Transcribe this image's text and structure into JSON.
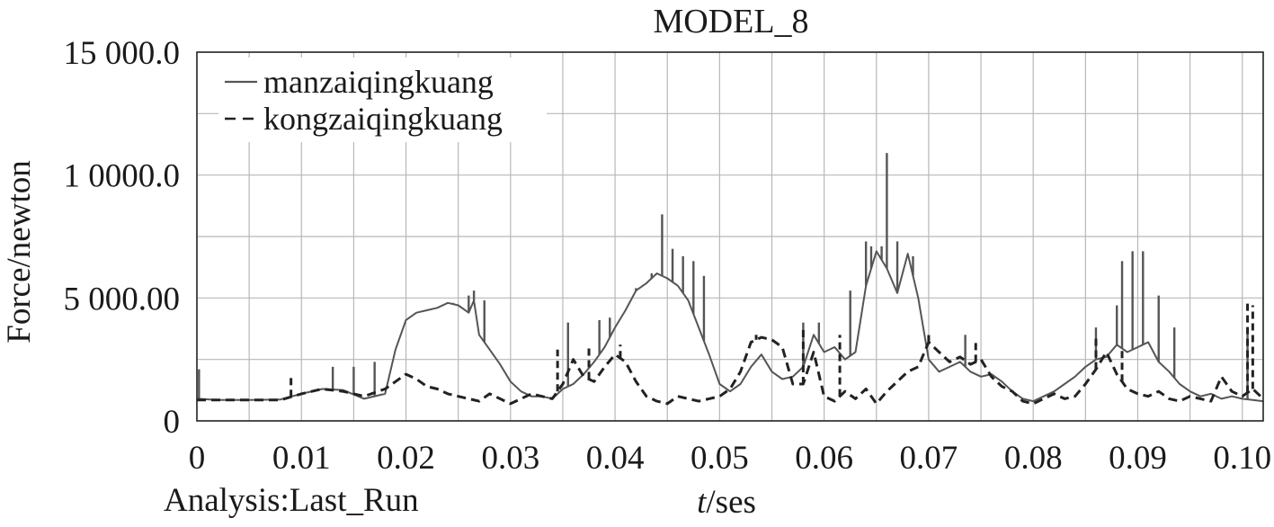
{
  "chart_data": {
    "type": "line",
    "title": "MODEL_8",
    "xlabel_italic": "t",
    "xlabel_rest": "/ses",
    "ylabel": "Force/newton",
    "footer": "Analysis:Last_Run",
    "xlim": [
      0,
      0.102
    ],
    "ylim": [
      0,
      15000
    ],
    "x_ticks": [
      0,
      0.01,
      0.02,
      0.03,
      0.04,
      0.05,
      0.06,
      0.07,
      0.08,
      0.09,
      0.1
    ],
    "x_tick_labels": [
      "0",
      "0.01",
      "0.02",
      "0.03",
      "0.04",
      "0.05",
      "0.06",
      "0.07",
      "0.08",
      "0.09",
      "0.10"
    ],
    "y_ticks": [
      0,
      5000,
      10000,
      15000
    ],
    "y_tick_labels": [
      "0",
      "5 000.00",
      "1 0000.0",
      "15 000.0"
    ],
    "grid": true,
    "legend_position": "top-left",
    "series": [
      {
        "name": "manzaiqingkuang",
        "style": "solid",
        "color": "#555555",
        "x": [
          0,
          0.002,
          0.005,
          0.008,
          0.01,
          0.012,
          0.014,
          0.016,
          0.018,
          0.019,
          0.02,
          0.021,
          0.022,
          0.023,
          0.024,
          0.025,
          0.026,
          0.0265,
          0.027,
          0.028,
          0.029,
          0.03,
          0.031,
          0.032,
          0.033,
          0.034,
          0.035,
          0.036,
          0.037,
          0.038,
          0.039,
          0.04,
          0.041,
          0.042,
          0.043,
          0.044,
          0.045,
          0.046,
          0.047,
          0.048,
          0.049,
          0.05,
          0.051,
          0.052,
          0.053,
          0.054,
          0.055,
          0.056,
          0.057,
          0.058,
          0.059,
          0.06,
          0.061,
          0.062,
          0.063,
          0.064,
          0.065,
          0.066,
          0.067,
          0.068,
          0.069,
          0.07,
          0.071,
          0.072,
          0.073,
          0.074,
          0.075,
          0.076,
          0.077,
          0.078,
          0.079,
          0.08,
          0.081,
          0.082,
          0.083,
          0.084,
          0.085,
          0.086,
          0.087,
          0.088,
          0.089,
          0.09,
          0.091,
          0.092,
          0.093,
          0.094,
          0.095,
          0.096,
          0.097,
          0.098,
          0.099,
          0.1,
          0.101,
          0.102
        ],
        "y": [
          900,
          850,
          850,
          870,
          1100,
          1300,
          1250,
          900,
          1100,
          2900,
          4100,
          4400,
          4500,
          4600,
          4800,
          4700,
          4400,
          4900,
          3500,
          2900,
          2300,
          1600,
          1200,
          1000,
          1000,
          900,
          1300,
          1500,
          1900,
          2400,
          3000,
          3800,
          4500,
          5300,
          5600,
          6000,
          5800,
          5500,
          4900,
          3800,
          2700,
          1500,
          1200,
          1500,
          2200,
          2700,
          2000,
          1700,
          1800,
          2200,
          3500,
          2800,
          3000,
          2500,
          2800,
          5500,
          6900,
          6200,
          5200,
          6800,
          5000,
          2500,
          2000,
          2200,
          2400,
          2000,
          1800,
          1900,
          1600,
          1200,
          900,
          800,
          1000,
          1200,
          1500,
          1800,
          2200,
          2500,
          2600,
          3100,
          2800,
          3000,
          3200,
          2400,
          2000,
          1500,
          1200,
          1000,
          1100,
          900,
          1000,
          900,
          850,
          800
        ],
        "spikes": [
          [
            0.0002,
            2100
          ],
          [
            0.013,
            2200
          ],
          [
            0.015,
            2200
          ],
          [
            0.017,
            2400
          ],
          [
            0.0245,
            4800
          ],
          [
            0.026,
            5100
          ],
          [
            0.0265,
            5300
          ],
          [
            0.0275,
            4900
          ],
          [
            0.0355,
            4000
          ],
          [
            0.0385,
            4100
          ],
          [
            0.0395,
            4200
          ],
          [
            0.042,
            5400
          ],
          [
            0.0435,
            6000
          ],
          [
            0.0445,
            8400
          ],
          [
            0.0455,
            7000
          ],
          [
            0.0465,
            6700
          ],
          [
            0.0475,
            6500
          ],
          [
            0.0485,
            5900
          ],
          [
            0.058,
            4000
          ],
          [
            0.0595,
            4000
          ],
          [
            0.0625,
            5300
          ],
          [
            0.064,
            7300
          ],
          [
            0.0645,
            7100
          ],
          [
            0.0655,
            7100
          ],
          [
            0.066,
            10900
          ],
          [
            0.067,
            7300
          ],
          [
            0.0685,
            6700
          ],
          [
            0.0735,
            3500
          ],
          [
            0.086,
            3800
          ],
          [
            0.088,
            4700
          ],
          [
            0.0885,
            6500
          ],
          [
            0.0895,
            6900
          ],
          [
            0.0905,
            6900
          ],
          [
            0.092,
            5100
          ],
          [
            0.0935,
            3800
          ],
          [
            0.1005,
            3600
          ]
        ]
      },
      {
        "name": "kongzaiqingkuang",
        "style": "dashed",
        "color": "#222222",
        "x": [
          0,
          0.002,
          0.005,
          0.008,
          0.01,
          0.012,
          0.014,
          0.016,
          0.018,
          0.019,
          0.02,
          0.021,
          0.022,
          0.023,
          0.024,
          0.025,
          0.026,
          0.027,
          0.028,
          0.029,
          0.03,
          0.031,
          0.032,
          0.033,
          0.034,
          0.035,
          0.036,
          0.037,
          0.038,
          0.039,
          0.04,
          0.041,
          0.042,
          0.043,
          0.044,
          0.045,
          0.046,
          0.047,
          0.048,
          0.049,
          0.05,
          0.051,
          0.052,
          0.053,
          0.054,
          0.055,
          0.056,
          0.057,
          0.058,
          0.059,
          0.06,
          0.061,
          0.062,
          0.063,
          0.064,
          0.065,
          0.066,
          0.067,
          0.068,
          0.069,
          0.07,
          0.071,
          0.072,
          0.073,
          0.074,
          0.075,
          0.076,
          0.077,
          0.078,
          0.079,
          0.08,
          0.081,
          0.082,
          0.083,
          0.084,
          0.085,
          0.086,
          0.087,
          0.088,
          0.089,
          0.09,
          0.091,
          0.092,
          0.093,
          0.094,
          0.095,
          0.096,
          0.097,
          0.098,
          0.099,
          0.1,
          0.101,
          0.102
        ],
        "y": [
          850,
          850,
          850,
          850,
          1100,
          1300,
          1200,
          1000,
          1300,
          1600,
          1900,
          1700,
          1400,
          1300,
          1100,
          1000,
          900,
          800,
          1100,
          900,
          700,
          900,
          1100,
          1000,
          900,
          1500,
          2500,
          1800,
          1600,
          2200,
          2700,
          2400,
          1600,
          1000,
          800,
          700,
          1000,
          900,
          800,
          900,
          1000,
          1300,
          2000,
          3200,
          3400,
          3300,
          3000,
          1500,
          1500,
          2800,
          1000,
          800,
          1200,
          900,
          1300,
          700,
          1200,
          1600,
          2000,
          2200,
          3200,
          2800,
          2400,
          2600,
          2300,
          2500,
          1800,
          1400,
          1200,
          800,
          700,
          900,
          1100,
          900,
          1000,
          1500,
          2100,
          2800,
          1900,
          1300,
          1100,
          1000,
          1200,
          900,
          800,
          1000,
          900,
          800,
          1800,
          1200,
          1000,
          1300,
          900
        ],
        "spikes": [
          [
            0.009,
            1900
          ],
          [
            0.0345,
            2900
          ],
          [
            0.0375,
            3000
          ],
          [
            0.0405,
            3100
          ],
          [
            0.0535,
            3500
          ],
          [
            0.058,
            3700
          ],
          [
            0.0615,
            3500
          ],
          [
            0.07,
            3500
          ],
          [
            0.0745,
            3300
          ],
          [
            0.086,
            3400
          ],
          [
            0.0885,
            3000
          ],
          [
            0.1005,
            4800
          ],
          [
            0.101,
            4700
          ]
        ]
      }
    ]
  }
}
